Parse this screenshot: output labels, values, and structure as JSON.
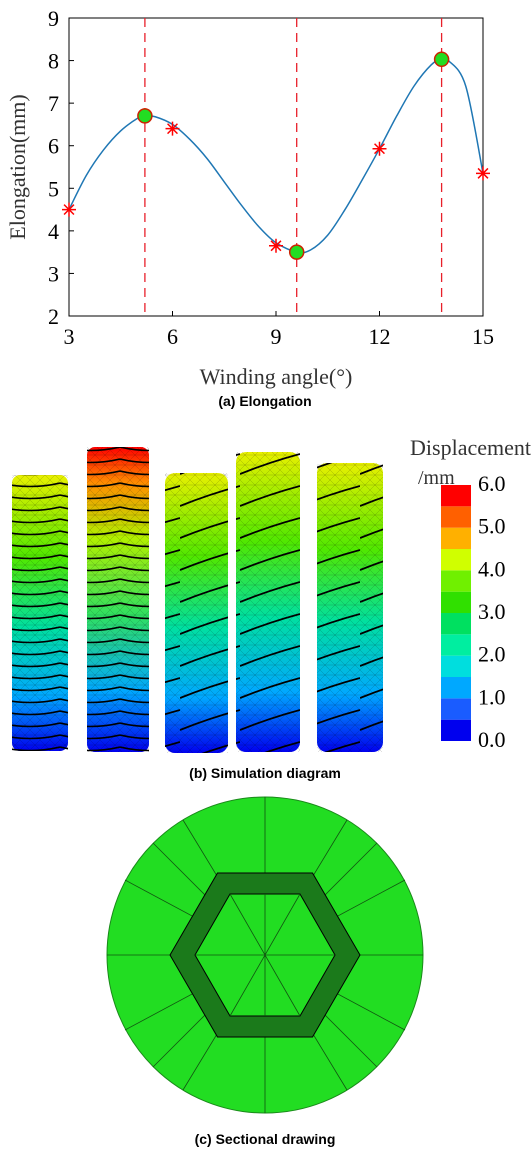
{
  "chart_data": {
    "type": "line",
    "x_label": "Winding angle(°)",
    "y_label": "Elongation(mm)",
    "caption": "(a) Elongation",
    "xlim": [
      3,
      15
    ],
    "xticks": [
      3,
      6,
      9,
      12,
      15
    ],
    "ylim": [
      2,
      9
    ],
    "yticks": [
      2,
      3,
      4,
      5,
      6,
      7,
      8,
      9
    ],
    "vlines": [
      5.2,
      9.6,
      13.8
    ],
    "vline_color": "#e8202a",
    "series": [
      {
        "style": "curve",
        "color": "#1f77b4",
        "x": [
          3,
          3.5,
          4,
          4.5,
          5,
          5.2,
          5.5,
          6,
          6.5,
          7,
          7.5,
          8,
          8.5,
          9,
          9.6,
          10,
          10.5,
          11,
          11.5,
          12,
          12.5,
          13,
          13.5,
          13.8,
          14,
          14.5,
          15
        ],
        "values": [
          4.5,
          5.3,
          5.9,
          6.35,
          6.65,
          6.7,
          6.68,
          6.5,
          6.15,
          5.7,
          5.15,
          4.6,
          4.1,
          3.72,
          3.5,
          3.55,
          3.9,
          4.5,
          5.2,
          5.93,
          6.7,
          7.4,
          7.9,
          8.03,
          8.0,
          7.4,
          5.35
        ]
      },
      {
        "style": "asterisk",
        "color": "#ff0000",
        "x": [
          3,
          6,
          9,
          12,
          15
        ],
        "values": [
          4.5,
          6.4,
          3.65,
          5.93,
          5.35
        ]
      },
      {
        "style": "circle",
        "color": "#22dd22",
        "edge": "#cc2200",
        "x": [
          5.2,
          9.6,
          13.8
        ],
        "values": [
          6.7,
          3.5,
          8.03
        ]
      }
    ]
  },
  "colorbar": {
    "title": "Displacement",
    "unit": "/mm",
    "range": [
      0,
      6
    ],
    "ticks": [
      {
        "value": 6,
        "label": "6.0"
      },
      {
        "value": 5,
        "label": "5.0"
      },
      {
        "value": 4,
        "label": "4.0"
      },
      {
        "value": 3,
        "label": "3.0"
      },
      {
        "value": 2,
        "label": "2.0"
      },
      {
        "value": 1,
        "label": "1.0"
      },
      {
        "value": 0,
        "label": "0.0"
      }
    ],
    "colors": [
      "#0000ee",
      "#1a5cff",
      "#00a8ff",
      "#00dede",
      "#00eea0",
      "#00e060",
      "#30e000",
      "#70f000",
      "#d0ff00",
      "#ffb000",
      "#ff6000",
      "#ff0000"
    ]
  },
  "captions": {
    "simulation": "(b) Simulation diagram",
    "section": "(c) Sectional drawing"
  }
}
